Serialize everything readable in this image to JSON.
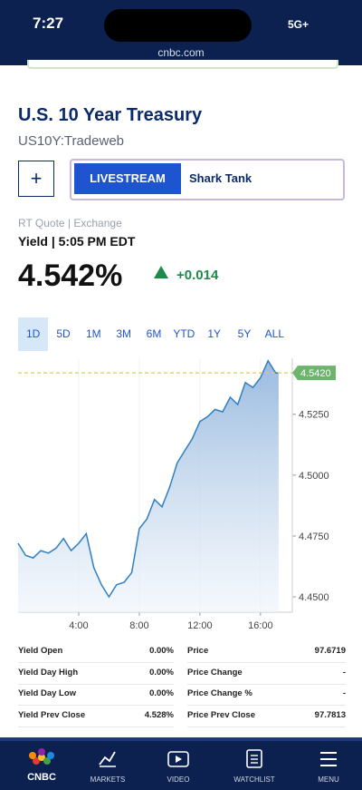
{
  "status_bar": {
    "time": "7:27",
    "network": "5G+",
    "url": "cnbc.com"
  },
  "header": {
    "title": "U.S. 10 Year Treasury",
    "symbol": "US10Y:Tradeweb"
  },
  "livestream": {
    "add": "+",
    "label": "LIVESTREAM",
    "show": "Shark Tank"
  },
  "quote": {
    "source": "RT Quote | Exchange",
    "time_label": "Yield | 5:05 PM EDT",
    "price": "4.542%",
    "change": "+0.014"
  },
  "ranges": [
    "1D",
    "5D",
    "1M",
    "3M",
    "6M",
    "YTD",
    "1Y",
    "5Y",
    "ALL"
  ],
  "chart_data": {
    "type": "area",
    "x": [
      0,
      0.5,
      1,
      1.5,
      2,
      2.5,
      3,
      3.5,
      4,
      4.5,
      5,
      5.5,
      6,
      6.5,
      7,
      7.5,
      8,
      8.5,
      9,
      9.5,
      10,
      10.5,
      11,
      11.5,
      12,
      12.5,
      13,
      13.5,
      14,
      14.5,
      15,
      15.5,
      16,
      16.5,
      17,
      17.2
    ],
    "series": [
      {
        "color": "#2f7fc1",
        "values": [
          4.472,
          4.467,
          4.466,
          4.469,
          4.468,
          4.47,
          4.474,
          4.469,
          4.472,
          4.476,
          4.462,
          4.455,
          4.45,
          4.455,
          4.456,
          4.46,
          4.478,
          4.482,
          4.49,
          4.487,
          4.495,
          4.505,
          4.51,
          4.515,
          4.522,
          4.524,
          4.527,
          4.526,
          4.532,
          4.529,
          4.538,
          4.536,
          4.54,
          4.547,
          4.542,
          4.542
        ]
      }
    ],
    "xlim": [
      0,
      18.1
    ],
    "ylim": [
      4.4437,
      4.548
    ],
    "xticks": [
      {
        "value": 4,
        "label": "4:00"
      },
      {
        "value": 8,
        "label": "8:00"
      },
      {
        "value": 12,
        "label": "12:00"
      },
      {
        "value": 16,
        "label": "16:00"
      }
    ],
    "yticks": [
      {
        "value": 4.45,
        "label": "4.4500"
      },
      {
        "value": 4.475,
        "label": "4.4750"
      },
      {
        "value": 4.5,
        "label": "4.5000"
      },
      {
        "value": 4.525,
        "label": "4.5250"
      }
    ],
    "reference": {
      "value": 4.542,
      "label": "4.5420",
      "color": "#e6c84a",
      "label_color": "#6db56d"
    }
  },
  "stats": [
    [
      "Yield Open",
      "0.00%",
      "Price",
      "97.6719"
    ],
    [
      "Yield Day High",
      "0.00%",
      "Price Change",
      "-"
    ],
    [
      "Yield Day Low",
      "0.00%",
      "Price Change %",
      "-"
    ],
    [
      "Yield Prev Close",
      "4.528%",
      "Price Prev Close",
      "97.7813"
    ]
  ],
  "nav": [
    "CNBC",
    "MARKETS",
    "VIDEO",
    "WATCHLIST",
    "MENU"
  ]
}
